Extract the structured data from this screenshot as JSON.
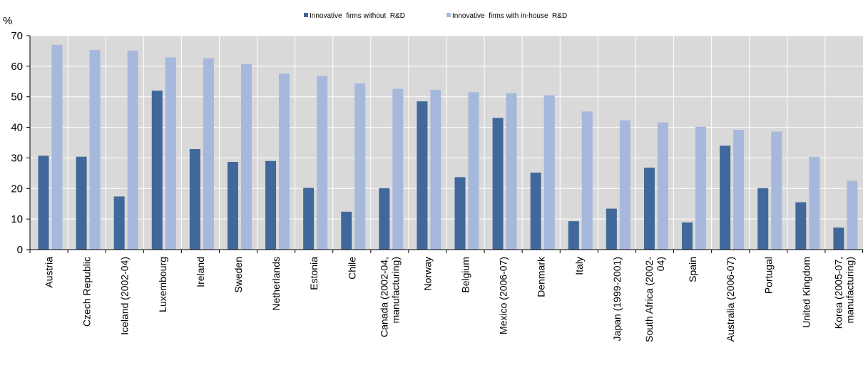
{
  "chart_data": {
    "type": "bar",
    "unit_label": "%",
    "ylim": [
      0,
      70
    ],
    "yticks": [
      "0",
      "10",
      "20",
      "30",
      "40",
      "50",
      "60",
      "70"
    ],
    "grid": true,
    "legend_position": "top",
    "colors": {
      "without_rd": "#41689a",
      "with_rd": "#a6b8dc",
      "plot_bg": "#d9d9d9",
      "gridline": "#ffffff"
    },
    "categories": [
      [
        "Austria"
      ],
      [
        "Czech Republic"
      ],
      [
        "Iceland (2002-04)"
      ],
      [
        "Luxembourg"
      ],
      [
        "Ireland"
      ],
      [
        "Sweden"
      ],
      [
        "Netherlands"
      ],
      [
        "Estonia"
      ],
      [
        "Chile"
      ],
      [
        "Canada (2002-04,",
        "manufacturing)"
      ],
      [
        "Norway"
      ],
      [
        "Belgium"
      ],
      [
        "Mexico (2006-07)"
      ],
      [
        "Denmark"
      ],
      [
        "Italy"
      ],
      [
        "Japan (1999-2001)"
      ],
      [
        "South Africa (2002-",
        "04)"
      ],
      [
        "Spain"
      ],
      [
        "Australia (2006-07)"
      ],
      [
        "Portugal"
      ],
      [
        "United Kingdom"
      ],
      [
        "Korea (2005-07,",
        "manufacturing)"
      ]
    ],
    "series": [
      {
        "name": "Innovative  firms without  R&D",
        "values": [
          30.7,
          30.4,
          17.4,
          52,
          32.9,
          28.7,
          29,
          20.2,
          12.4,
          20.1,
          48.5,
          23.7,
          43.1,
          25.2,
          9.3,
          13.4,
          26.8,
          8.9,
          34,
          20.1,
          15.5,
          7.2
        ]
      },
      {
        "name": "Innovative  firms with in-house  R&D",
        "values": [
          67,
          65.3,
          65.1,
          62.9,
          62.6,
          60.7,
          57.6,
          56.8,
          54.4,
          52.6,
          52.3,
          51.5,
          51.2,
          50.5,
          45.2,
          42.3,
          41.6,
          40.2,
          39.2,
          38.6,
          30.3,
          22.5
        ]
      }
    ]
  }
}
